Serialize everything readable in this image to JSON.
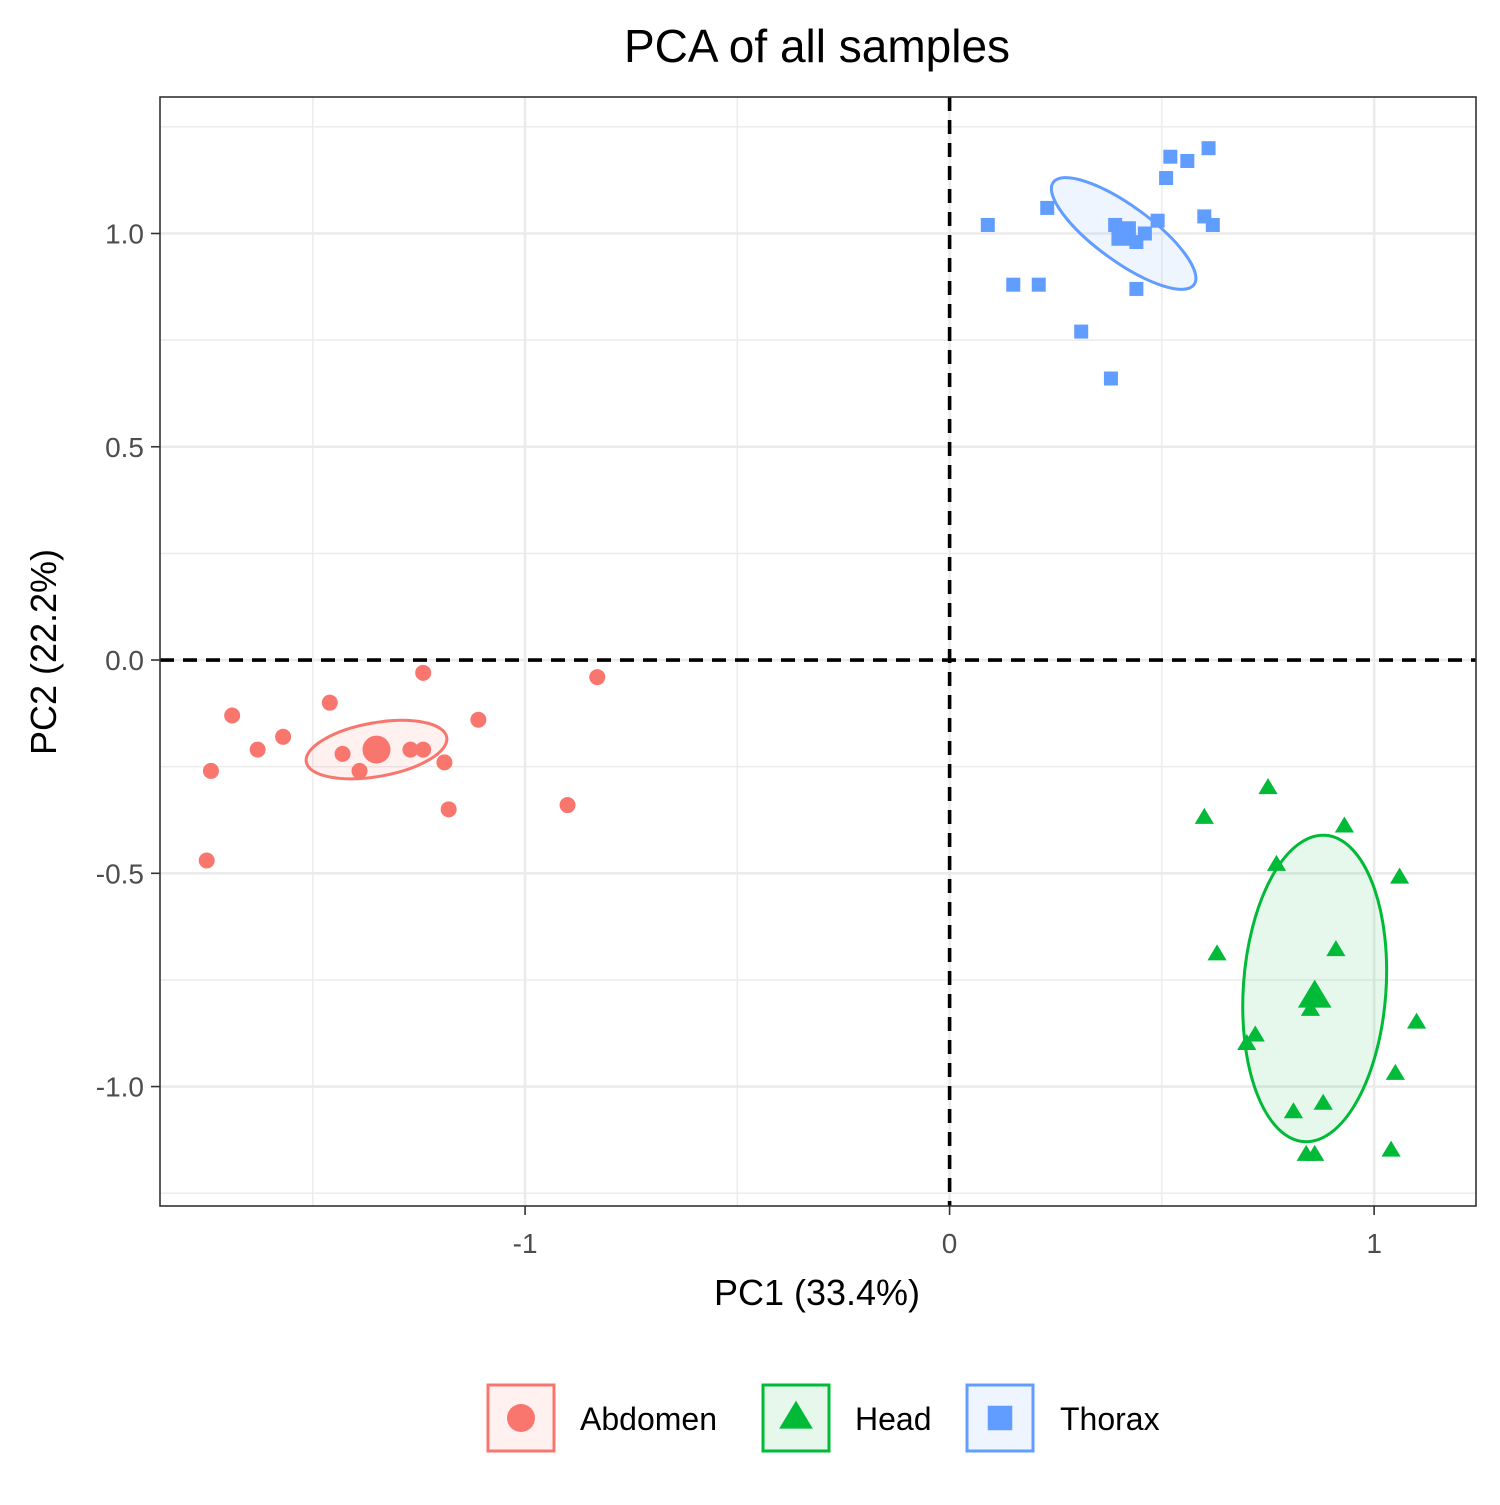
{
  "chart_data": {
    "type": "scatter",
    "title": "PCA of all samples",
    "xlabel": "PC1 (33.4%)",
    "ylabel": "PC2 (22.2%)",
    "xlim": [
      -1.86,
      1.24
    ],
    "ylim": [
      -1.28,
      1.32
    ],
    "x_ticks": [
      -1,
      0,
      1
    ],
    "x_tick_labels": [
      "-1",
      "0",
      "1"
    ],
    "y_ticks": [
      -1.0,
      -0.5,
      0.0,
      0.5,
      1.0
    ],
    "y_tick_labels": [
      "-1.0",
      "-0.5",
      "0.0",
      "0.5",
      "1.0"
    ],
    "grid": true,
    "reference_lines": {
      "x": 0,
      "y": 0,
      "style": "dashed"
    },
    "legend_position": "bottom",
    "series": [
      {
        "name": "Abdomen",
        "color": "#F8766D",
        "shape": "circle",
        "points": [
          [
            -1.69,
            -0.13
          ],
          [
            -1.63,
            -0.21
          ],
          [
            -1.57,
            -0.18
          ],
          [
            -1.46,
            -0.1
          ],
          [
            -1.43,
            -0.22
          ],
          [
            -1.39,
            -0.26
          ],
          [
            -1.27,
            -0.21
          ],
          [
            -1.24,
            -0.21
          ],
          [
            -1.24,
            -0.03
          ],
          [
            -1.19,
            -0.24
          ],
          [
            -1.18,
            -0.35
          ],
          [
            -1.11,
            -0.14
          ],
          [
            -0.9,
            -0.34
          ],
          [
            -0.83,
            -0.04
          ],
          [
            -1.74,
            -0.26
          ],
          [
            -1.75,
            -0.47
          ]
        ],
        "centroid": [
          -1.35,
          -0.21
        ],
        "ellipse": {
          "center": [
            -1.35,
            -0.21
          ],
          "rx": 0.168,
          "ry": 0.063,
          "angle_deg": 10
        }
      },
      {
        "name": "Head",
        "color": "#00BA38",
        "shape": "triangle",
        "points": [
          [
            0.6,
            -0.37
          ],
          [
            0.75,
            -0.3
          ],
          [
            0.77,
            -0.48
          ],
          [
            0.93,
            -0.39
          ],
          [
            1.06,
            -0.51
          ],
          [
            0.63,
            -0.69
          ],
          [
            0.91,
            -0.68
          ],
          [
            0.72,
            -0.88
          ],
          [
            0.7,
            -0.9
          ],
          [
            0.85,
            -0.82
          ],
          [
            0.86,
            -0.78
          ],
          [
            1.1,
            -0.85
          ],
          [
            1.05,
            -0.97
          ],
          [
            0.81,
            -1.06
          ],
          [
            0.88,
            -1.04
          ],
          [
            0.84,
            -1.16
          ],
          [
            0.86,
            -1.16
          ],
          [
            1.04,
            -1.15
          ]
        ],
        "centroid": [
          0.86,
          -0.79
        ],
        "ellipse": {
          "center": [
            0.86,
            -0.77
          ],
          "rx": 0.168,
          "ry": 0.36,
          "angle_deg": -4
        }
      },
      {
        "name": "Thorax",
        "color": "#619CFF",
        "shape": "square",
        "points": [
          [
            0.09,
            1.02
          ],
          [
            0.15,
            0.88
          ],
          [
            0.21,
            0.88
          ],
          [
            0.23,
            1.06
          ],
          [
            0.31,
            0.77
          ],
          [
            0.38,
            0.66
          ],
          [
            0.39,
            1.02
          ],
          [
            0.4,
            0.99
          ],
          [
            0.42,
            1.0
          ],
          [
            0.44,
            0.98
          ],
          [
            0.44,
            0.87
          ],
          [
            0.46,
            1.0
          ],
          [
            0.49,
            1.03
          ],
          [
            0.51,
            1.13
          ],
          [
            0.52,
            1.18
          ],
          [
            0.56,
            1.17
          ],
          [
            0.6,
            1.04
          ],
          [
            0.61,
            1.2
          ],
          [
            0.62,
            1.02
          ]
        ],
        "centroid": [
          0.41,
          1.0
        ],
        "ellipse": {
          "center": [
            0.41,
            1.0
          ],
          "rx": 0.205,
          "ry": 0.065,
          "angle_deg": -36
        }
      }
    ]
  }
}
